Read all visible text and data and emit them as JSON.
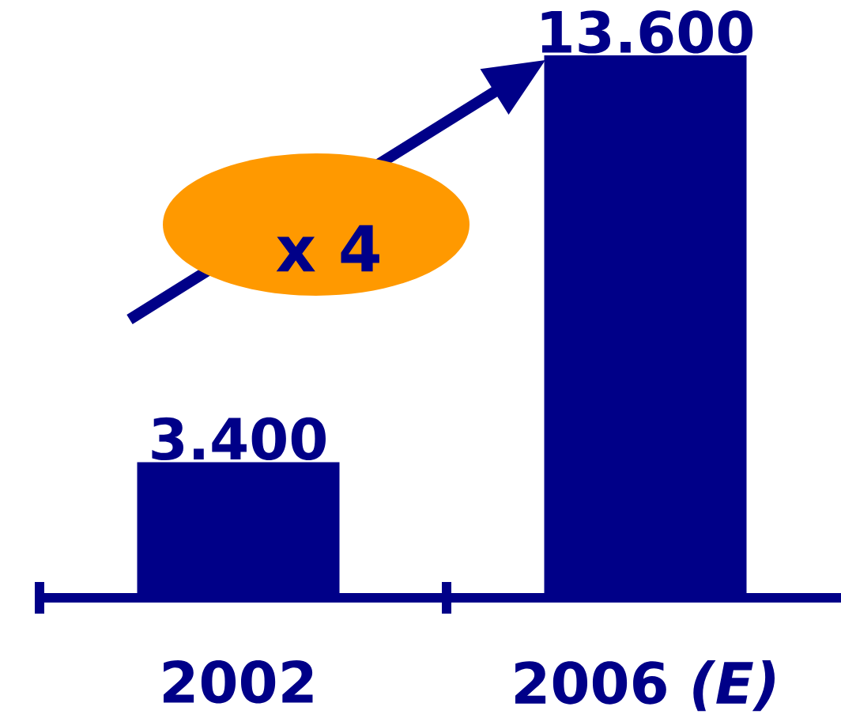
{
  "chart_data": {
    "type": "bar",
    "categories": [
      "2002",
      "2006 *(E)*"
    ],
    "values": [
      3400,
      13600
    ],
    "color": "#000088",
    "value_labels": [
      "3.400",
      "13.600"
    ],
    "annotations": [
      "x 4"
    ]
  }
}
